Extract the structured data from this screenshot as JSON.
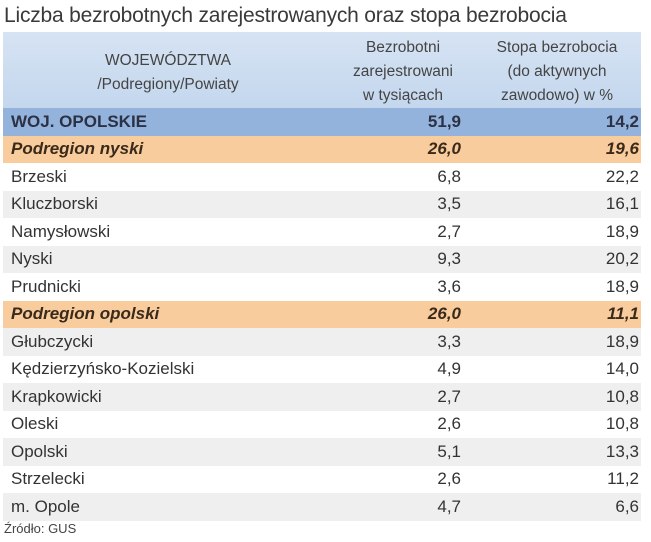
{
  "title": "Liczba bezrobotnych zarejestrowanych oraz stopa bezrobocia",
  "header": {
    "col1_line1": "WOJEWÓDZTWA",
    "col1_line2": "/Podregiony/Powiaty",
    "col2_line1": "Bezrobotni",
    "col2_line2": "zarejestrowani",
    "col2_line3": "w tysiącach",
    "col3_line1": "Stopa bezrobocia",
    "col3_line2": "(do aktywnych",
    "col3_line3": "zawodowo) w %"
  },
  "rows": [
    {
      "name": "WOJ. OPOLSKIE",
      "unemployed": "51,9",
      "rate": "14,2",
      "type": "total"
    },
    {
      "name": "Podregion nyski",
      "unemployed": "26,0",
      "rate": "19,6",
      "type": "subregion"
    },
    {
      "name": "Brzeski",
      "unemployed": "6,8",
      "rate": "22,2",
      "type": "county"
    },
    {
      "name": "Kluczborski",
      "unemployed": "3,5",
      "rate": "16,1",
      "type": "county"
    },
    {
      "name": "Namysłowski",
      "unemployed": "2,7",
      "rate": "18,9",
      "type": "county"
    },
    {
      "name": "Nyski",
      "unemployed": "9,3",
      "rate": "20,2",
      "type": "county"
    },
    {
      "name": "Prudnicki",
      "unemployed": "3,6",
      "rate": "18,9",
      "type": "county"
    },
    {
      "name": "Podregion opolski",
      "unemployed": "26,0",
      "rate": "11,1",
      "type": "subregion"
    },
    {
      "name": "Głubczycki",
      "unemployed": "3,3",
      "rate": "18,9",
      "type": "county"
    },
    {
      "name": "Kędzierzyńsko-Kozielski",
      "unemployed": "4,9",
      "rate": "14,0",
      "type": "county"
    },
    {
      "name": "Krapkowicki",
      "unemployed": "2,7",
      "rate": "10,8",
      "type": "county"
    },
    {
      "name": "Oleski",
      "unemployed": "2,6",
      "rate": "10,8",
      "type": "county"
    },
    {
      "name": "Opolski",
      "unemployed": "5,1",
      "rate": "13,3",
      "type": "county"
    },
    {
      "name": "Strzelecki",
      "unemployed": "2,6",
      "rate": "11,2",
      "type": "county"
    },
    {
      "name": "m. Opole",
      "unemployed": "4,7",
      "rate": "6,6",
      "type": "county"
    }
  ],
  "source": "Źródło: GUS",
  "colors": {
    "header_bg": "#c9daef",
    "total_bg": "#94b3dc",
    "subregion_bg": "#f9cc9e",
    "stripe_bg": "#efefef"
  },
  "chart_data": {
    "type": "table",
    "title": "Liczba bezrobotnych zarejestrowanych oraz stopa bezrobocia",
    "columns": [
      "WOJEWÓDZTWA /Podregiony/Powiaty",
      "Bezrobotni zarejestrowani w tysiącach",
      "Stopa bezrobocia (do aktywnych zawodowo) w %"
    ],
    "categories": [
      "WOJ. OPOLSKIE",
      "Podregion nyski",
      "Brzeski",
      "Kluczborski",
      "Namysłowski",
      "Nyski",
      "Prudnicki",
      "Podregion opolski",
      "Głubczycki",
      "Kędzierzyńsko-Kozielski",
      "Krapkowicki",
      "Oleski",
      "Opolski",
      "Strzelecki",
      "m. Opole"
    ],
    "series": [
      {
        "name": "Bezrobotni zarejestrowani w tysiącach",
        "values": [
          51.9,
          26.0,
          6.8,
          3.5,
          2.7,
          9.3,
          3.6,
          26.0,
          3.3,
          4.9,
          2.7,
          2.6,
          5.1,
          2.6,
          4.7
        ]
      },
      {
        "name": "Stopa bezrobocia (do aktywnych zawodowo) w %",
        "values": [
          14.2,
          19.6,
          22.2,
          16.1,
          18.9,
          20.2,
          18.9,
          11.1,
          18.9,
          14.0,
          10.8,
          10.8,
          13.3,
          11.2,
          6.6
        ]
      }
    ],
    "source": "Źródło: GUS"
  }
}
